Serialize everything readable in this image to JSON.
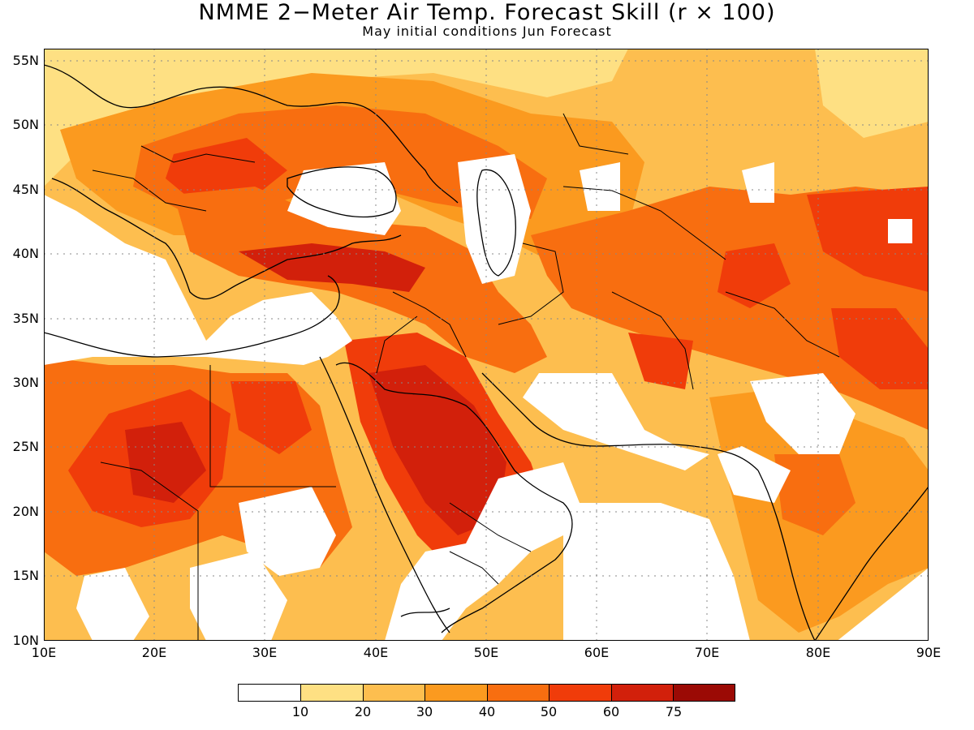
{
  "title": "NMME 2−Meter Air Temp. Forecast Skill (r × 100)",
  "subtitle": "May initial conditions  Jun Forecast",
  "map": {
    "lon_range": [
      10,
      90
    ],
    "lat_range": [
      10,
      56
    ],
    "lat_labels": [
      "55N",
      "50N",
      "45N",
      "40N",
      "35N",
      "30N",
      "25N",
      "20N",
      "15N",
      "10N"
    ],
    "lon_labels": [
      "10E",
      "20E",
      "30E",
      "40E",
      "50E",
      "60E",
      "70E",
      "80E",
      "90E"
    ],
    "gridlines": "dotted"
  },
  "colorbar": {
    "levels": [
      "10",
      "20",
      "30",
      "40",
      "50",
      "60",
      "75"
    ],
    "colors": [
      "#ffffff",
      "#fee083",
      "#fdbe4f",
      "#fb9a1f",
      "#f86e10",
      "#f03c0a",
      "#d2200b",
      "#9b0a05"
    ]
  }
}
